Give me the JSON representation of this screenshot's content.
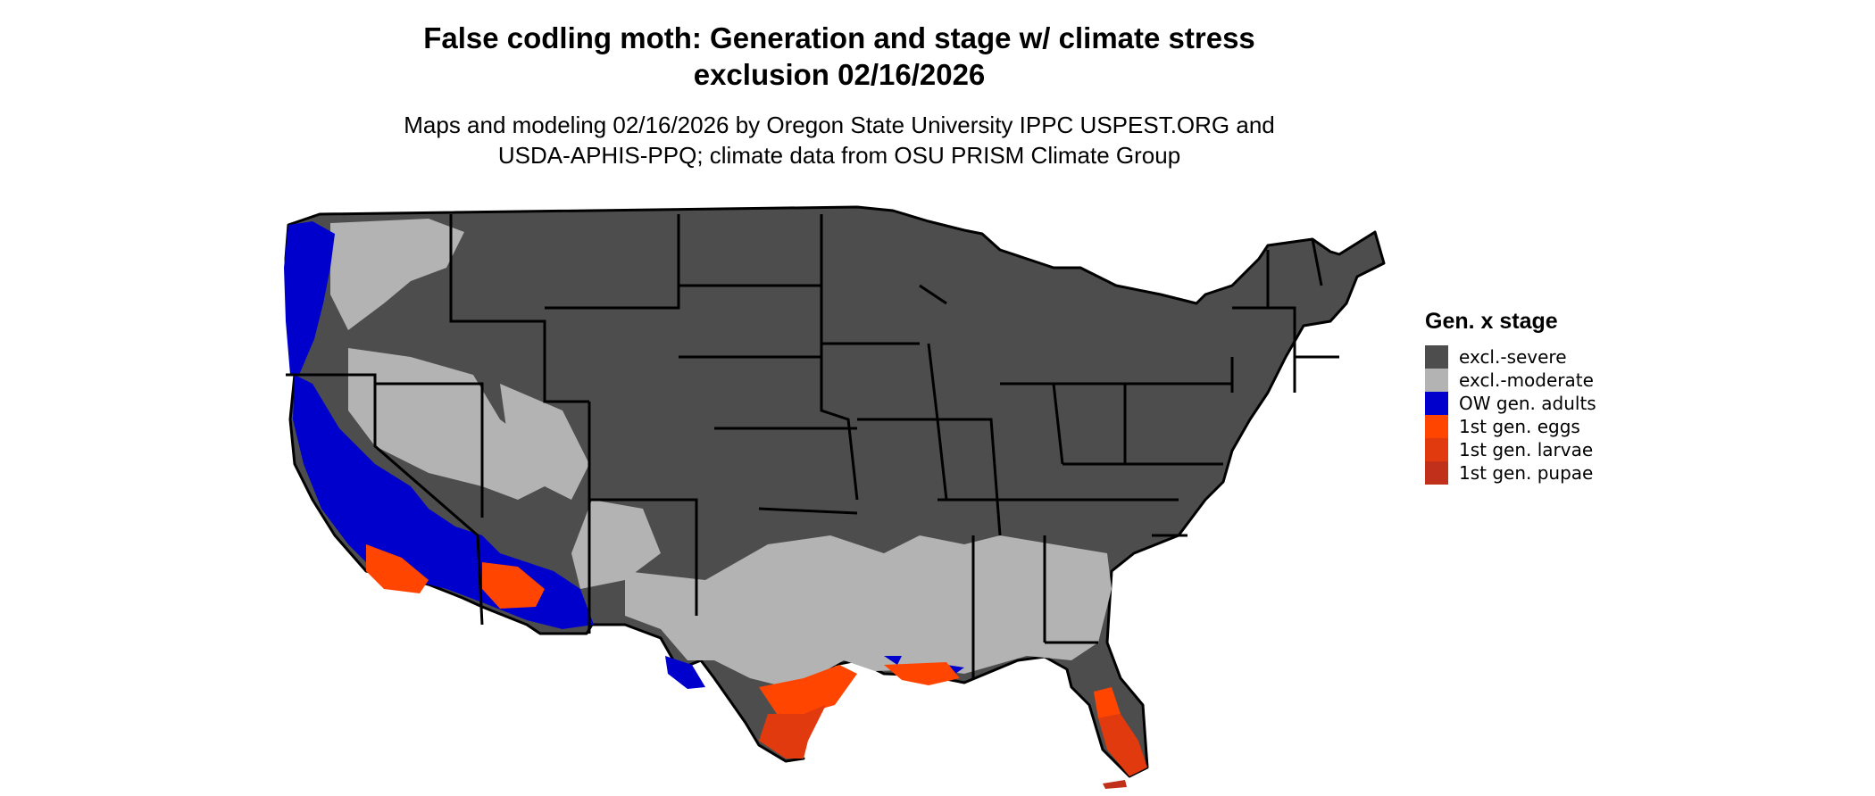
{
  "header": {
    "title_line1": "False codling moth: Generation and stage w/ climate stress",
    "title_line2": "exclusion 02/16/2026",
    "subtitle_line1": "Maps and modeling 02/16/2026 by Oregon State University IPPC USPEST.ORG and",
    "subtitle_line2": "USDA-APHIS-PPQ; climate data from OSU PRISM Climate Group"
  },
  "legend": {
    "title": "Gen. x stage",
    "items": [
      {
        "label": "excl.-severe",
        "color": "#4d4d4d"
      },
      {
        "label": "excl.-moderate",
        "color": "#b3b3b3"
      },
      {
        "label": "OW gen. adults",
        "color": "#0000cd"
      },
      {
        "label": "1st gen. eggs",
        "color": "#ff4500"
      },
      {
        "label": "1st gen. larvae",
        "color": "#e03a0e"
      },
      {
        "label": "1st gen. pupae",
        "color": "#c0301a"
      }
    ]
  },
  "map": {
    "region": "contiguous-united-states",
    "colors": {
      "severe": "#4d4d4d",
      "moderate": "#b3b3b3",
      "ow_adults": "#0000cd",
      "eggs": "#ff4500",
      "larvae": "#e03a0e",
      "pupae": "#c0301a",
      "borders": "#000000"
    }
  }
}
